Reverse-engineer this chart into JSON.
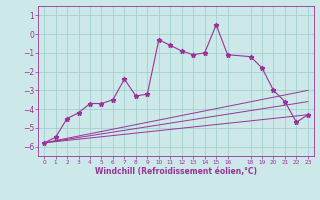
{
  "title": "",
  "xlabel": "Windchill (Refroidissement éolien,°C)",
  "ylabel": "",
  "background_color": "#cce8e8",
  "line_color": "#993399",
  "grid_color": "#99cccc",
  "xlim": [
    -0.5,
    23.5
  ],
  "ylim": [
    -6.5,
    1.5
  ],
  "yticks": [
    -6,
    -5,
    -4,
    -3,
    -2,
    -1,
    0,
    1
  ],
  "xticks": [
    0,
    1,
    2,
    3,
    4,
    5,
    6,
    7,
    8,
    9,
    10,
    11,
    12,
    13,
    14,
    15,
    16,
    18,
    19,
    20,
    21,
    22,
    23
  ],
  "series": {
    "main": [
      [
        0,
        -5.8
      ],
      [
        1,
        -5.5
      ],
      [
        2,
        -4.5
      ],
      [
        3,
        -4.2
      ],
      [
        4,
        -3.7
      ],
      [
        5,
        -3.7
      ],
      [
        6,
        -3.5
      ],
      [
        7,
        -2.4
      ],
      [
        8,
        -3.3
      ],
      [
        9,
        -3.2
      ],
      [
        10,
        -0.3
      ],
      [
        11,
        -0.6
      ],
      [
        12,
        -0.9
      ],
      [
        13,
        -1.1
      ],
      [
        14,
        -1.0
      ],
      [
        15,
        0.5
      ],
      [
        16,
        -1.1
      ],
      [
        18,
        -1.2
      ],
      [
        19,
        -1.8
      ],
      [
        20,
        -3.0
      ],
      [
        21,
        -3.6
      ],
      [
        22,
        -4.7
      ],
      [
        23,
        -4.3
      ]
    ],
    "line1": [
      [
        0,
        -5.8
      ],
      [
        23,
        -4.3
      ]
    ],
    "line2": [
      [
        0,
        -5.8
      ],
      [
        23,
        -3.6
      ]
    ],
    "line3": [
      [
        0,
        -5.8
      ],
      [
        23,
        -3.0
      ]
    ]
  }
}
